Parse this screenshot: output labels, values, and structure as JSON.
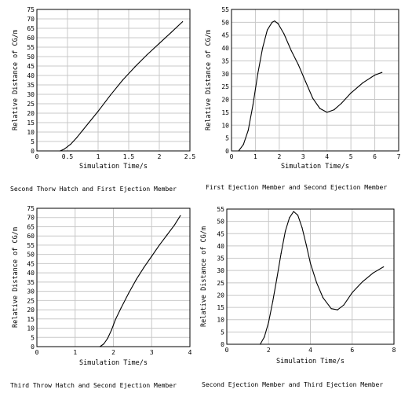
{
  "chart_data": [
    {
      "type": "line",
      "caption": "Second Thorw Hatch and First Ejection Member",
      "xlabel": "Simulation Time/s",
      "ylabel": "Relative Distance of CG/m",
      "xlim": [
        0,
        2.5
      ],
      "ylim": [
        0,
        75
      ],
      "xticks": [
        0,
        0.5,
        1,
        1.5,
        2,
        2.5
      ],
      "xtick_labels": [
        "0",
        "0.5",
        "1",
        "1.5",
        "2",
        "2.5"
      ],
      "yticks": [
        0,
        5,
        10,
        15,
        20,
        25,
        30,
        35,
        40,
        45,
        50,
        55,
        60,
        65,
        70,
        75
      ],
      "ytick_labels": [
        "0",
        "5",
        "10",
        "15",
        "20",
        "25",
        "30",
        "35",
        "40",
        "45",
        "50",
        "55",
        "60",
        "65",
        "70",
        "75"
      ],
      "grid": true,
      "x": [
        0.38,
        0.45,
        0.55,
        0.65,
        0.75,
        0.85,
        1.0,
        1.2,
        1.4,
        1.6,
        1.8,
        2.0,
        2.2,
        2.38
      ],
      "y": [
        0,
        1,
        3.5,
        7,
        11,
        15,
        21,
        29.5,
        37.5,
        44.5,
        51,
        57,
        63,
        68.5
      ]
    },
    {
      "type": "line",
      "caption": "First Ejection Member and Second Ejection Member",
      "xlabel": "Simulation Time/s",
      "ylabel": "Relative Distance of CG/m",
      "xlim": [
        0,
        7
      ],
      "ylim": [
        0,
        55
      ],
      "xticks": [
        0,
        1,
        2,
        3,
        4,
        5,
        6,
        7
      ],
      "xtick_labels": [
        "0",
        "1",
        "2",
        "3",
        "4",
        "5",
        "6",
        "7"
      ],
      "yticks": [
        0,
        5,
        10,
        15,
        20,
        25,
        30,
        35,
        40,
        45,
        50,
        55
      ],
      "ytick_labels": [
        "0",
        "5",
        "10",
        "15",
        "20",
        "25",
        "30",
        "35",
        "40",
        "45",
        "50",
        "55"
      ],
      "grid": true,
      "x": [
        0.3,
        0.5,
        0.7,
        0.9,
        1.1,
        1.3,
        1.5,
        1.7,
        1.8,
        1.95,
        2.2,
        2.5,
        2.8,
        3.1,
        3.4,
        3.7,
        4.0,
        4.3,
        4.6,
        5.0,
        5.5,
        6.0,
        6.3
      ],
      "y": [
        0,
        2.5,
        8,
        18,
        30,
        40,
        47,
        50,
        50.5,
        49.5,
        45.5,
        39,
        33.5,
        27,
        20.5,
        16.5,
        15,
        16,
        18.5,
        22.5,
        26.5,
        29.5,
        30.5
      ]
    },
    {
      "type": "line",
      "caption": "Third Throw Hatch and Second Ejection Member",
      "xlabel": "Simulation Time/s",
      "ylabel": "Relative Distance of CG/m",
      "xlim": [
        0,
        4
      ],
      "ylim": [
        0,
        75
      ],
      "xticks": [
        0,
        1,
        2,
        3,
        4
      ],
      "xtick_labels": [
        "0",
        "1",
        "2",
        "3",
        "4"
      ],
      "yticks": [
        0,
        5,
        10,
        15,
        20,
        25,
        30,
        35,
        40,
        45,
        50,
        55,
        60,
        65,
        70,
        75
      ],
      "ytick_labels": [
        "0",
        "5",
        "10",
        "15",
        "20",
        "25",
        "30",
        "35",
        "40",
        "45",
        "50",
        "55",
        "60",
        "65",
        "70",
        "75"
      ],
      "grid": true,
      "x": [
        1.65,
        1.75,
        1.85,
        1.95,
        2.05,
        2.2,
        2.4,
        2.6,
        2.8,
        3.0,
        3.2,
        3.4,
        3.6,
        3.75
      ],
      "y": [
        0,
        1.5,
        4.5,
        9,
        14.5,
        21,
        29,
        36.5,
        43,
        49,
        55,
        60.5,
        66,
        71
      ]
    },
    {
      "type": "line",
      "caption": "Second Ejection Member and Third Ejection Member",
      "xlabel": "Simulation Time/s",
      "ylabel": "Relative Distance of CG/m",
      "xlim": [
        0,
        8
      ],
      "ylim": [
        0,
        55
      ],
      "xticks": [
        0,
        2,
        4,
        6,
        8
      ],
      "xtick_labels": [
        "0",
        "2",
        "4",
        "6",
        "8"
      ],
      "yticks": [
        0,
        5,
        10,
        15,
        20,
        25,
        30,
        35,
        40,
        45,
        50,
        55
      ],
      "ytick_labels": [
        "0",
        "5",
        "10",
        "15",
        "20",
        "25",
        "30",
        "35",
        "40",
        "45",
        "50",
        "55"
      ],
      "grid": true,
      "x": [
        1.6,
        1.8,
        2.0,
        2.2,
        2.4,
        2.6,
        2.8,
        3.0,
        3.2,
        3.4,
        3.6,
        3.8,
        4.0,
        4.3,
        4.6,
        5.0,
        5.3,
        5.6,
        6.0,
        6.5,
        7.0,
        7.5
      ],
      "y": [
        0,
        3,
        9,
        17.5,
        27,
        37,
        46,
        51.5,
        54,
        52.5,
        47.5,
        40.5,
        33,
        25,
        19,
        14.5,
        14,
        16,
        21,
        25.5,
        29,
        31.5
      ]
    }
  ]
}
